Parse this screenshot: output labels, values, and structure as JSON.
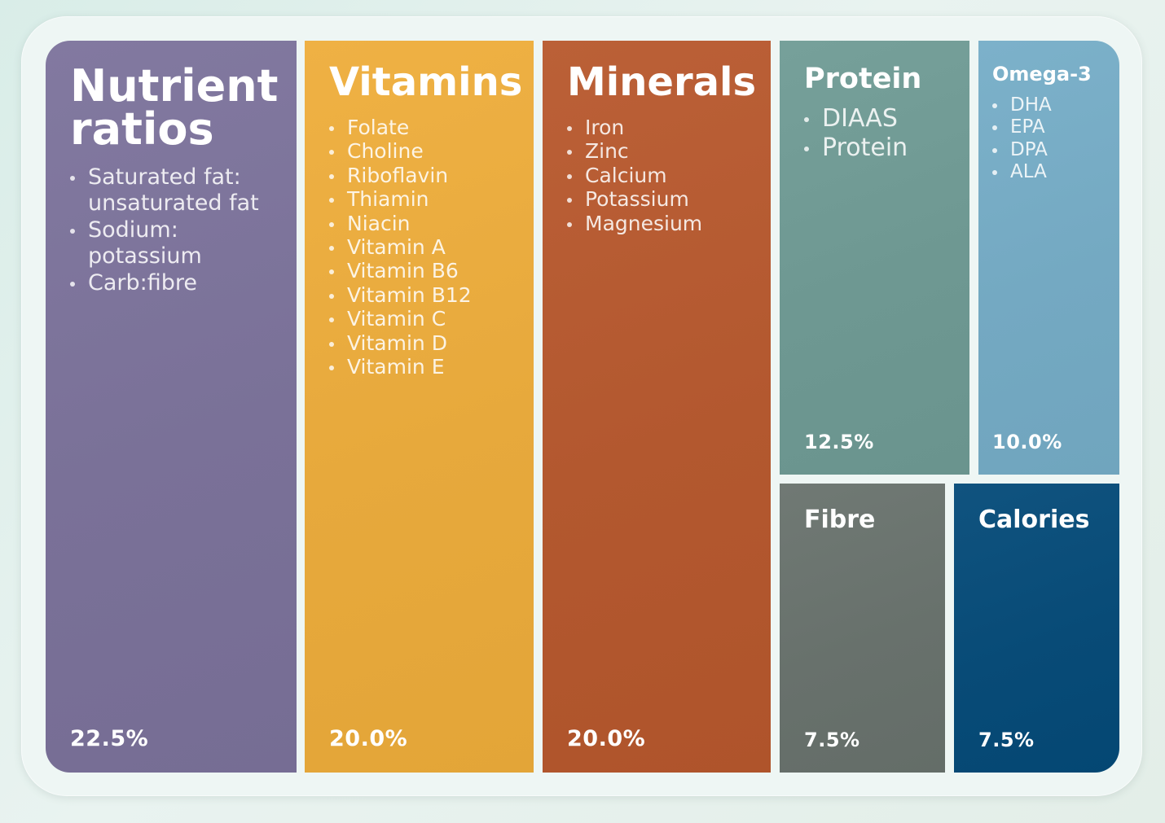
{
  "chart_data": {
    "type": "treemap",
    "title": "",
    "categories": [
      {
        "name": "Nutrient ratios",
        "percent_label": "22.5%",
        "value": 22.5,
        "items": [
          "Saturated fat: unsaturated fat",
          "Sodium: potassium",
          "Carb:fibre"
        ],
        "color": "#7a7198"
      },
      {
        "name": "Vitamins",
        "percent_label": "20.0%",
        "value": 20.0,
        "items": [
          "Folate",
          "Choline",
          "Riboflavin",
          "Thiamin",
          "Niacin",
          "Vitamin A",
          "Vitamin B6",
          "Vitamin B12",
          "Vitamin C",
          "Vitamin D",
          "Vitamin E"
        ],
        "color": "#e7a93c"
      },
      {
        "name": "Minerals",
        "percent_label": "20.0%",
        "value": 20.0,
        "items": [
          "Iron",
          "Zinc",
          "Calcium",
          "Potassium",
          "Magnesium"
        ],
        "color": "#b3582f"
      },
      {
        "name": "Protein",
        "percent_label": "12.5%",
        "value": 12.5,
        "items": [
          "DIAAS",
          "Protein"
        ],
        "color": "#6e9892"
      },
      {
        "name": "Omega-3",
        "percent_label": "10.0%",
        "value": 10.0,
        "items": [
          "DHA",
          "EPA",
          "DPA",
          "ALA"
        ],
        "color": "#74a9c2"
      },
      {
        "name": "Fibre",
        "percent_label": "7.5%",
        "value": 7.5,
        "items": [],
        "color": "#68716c"
      },
      {
        "name": "Calories",
        "percent_label": "7.5%",
        "value": 7.5,
        "items": [],
        "color": "#084b77"
      }
    ]
  }
}
